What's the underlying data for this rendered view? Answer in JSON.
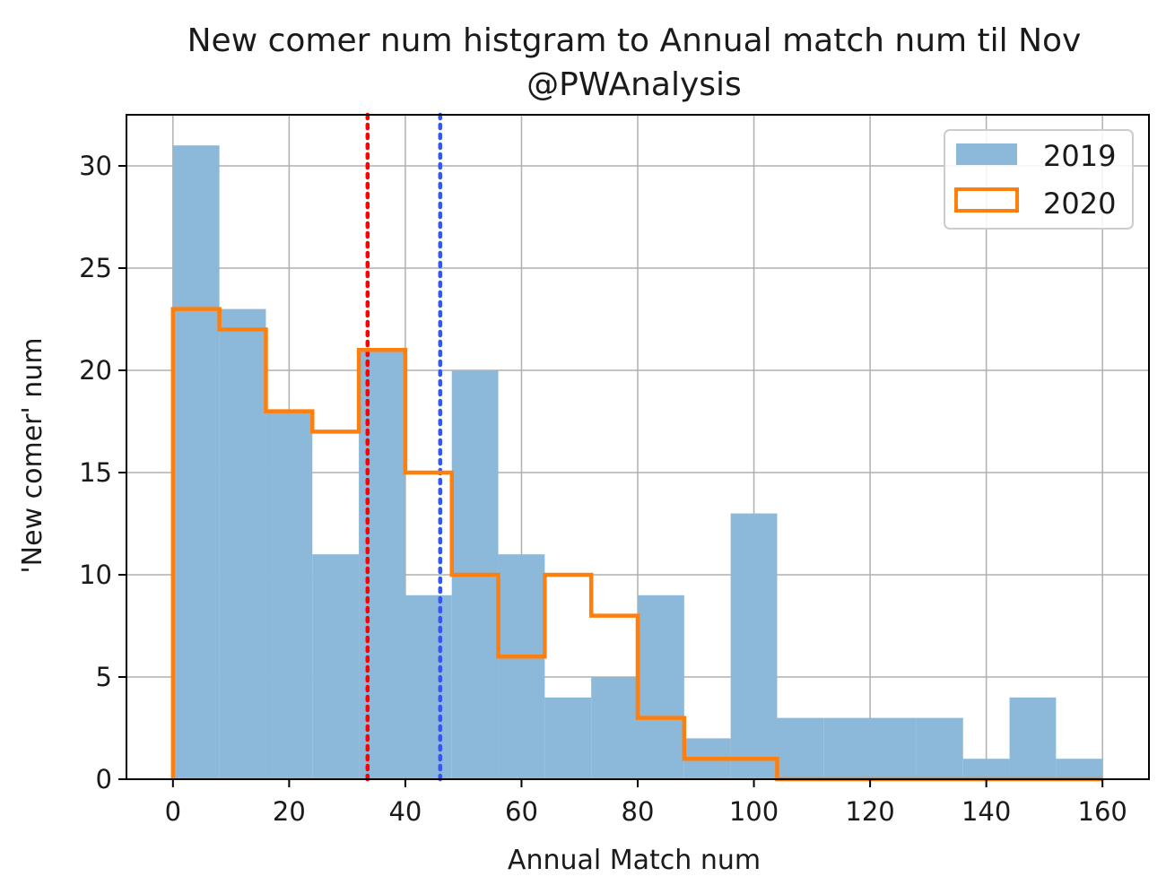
{
  "chart_data": {
    "type": "bar",
    "title": "New comer num histgram to Annual match num til Nov",
    "subtitle": "@PWAnalysis",
    "xlabel": "Annual Match num",
    "ylabel": "'New comer' num",
    "xlim": [
      -8,
      168
    ],
    "ylim": [
      0,
      32.5
    ],
    "xticks": [
      0,
      20,
      40,
      60,
      80,
      100,
      120,
      140,
      160
    ],
    "yticks": [
      0,
      5,
      10,
      15,
      20,
      25,
      30
    ],
    "grid": true,
    "legend_position": "top-right",
    "bin_edges": [
      0,
      8,
      16,
      24,
      32,
      40,
      48,
      56,
      64,
      72,
      80,
      88,
      96,
      104,
      112,
      120,
      128,
      136,
      144,
      152,
      160
    ],
    "series": [
      {
        "name": "2019",
        "style": "filled",
        "color": "#8cb8d9",
        "values": [
          31,
          23,
          18,
          11,
          21,
          9,
          20,
          11,
          4,
          5,
          9,
          2,
          13,
          3,
          3,
          3,
          3,
          1,
          4,
          1
        ]
      },
      {
        "name": "2020",
        "style": "step",
        "color": "#ff7f0e",
        "values": [
          23,
          22,
          18,
          17,
          21,
          15,
          10,
          6,
          10,
          8,
          3,
          1,
          1,
          0,
          0,
          0,
          0,
          0,
          0,
          0
        ]
      }
    ],
    "reference_lines": [
      {
        "x": 33.5,
        "color": "#ff0000",
        "style": "dotted"
      },
      {
        "x": 46,
        "color": "#3355ff",
        "style": "dotted"
      }
    ]
  }
}
